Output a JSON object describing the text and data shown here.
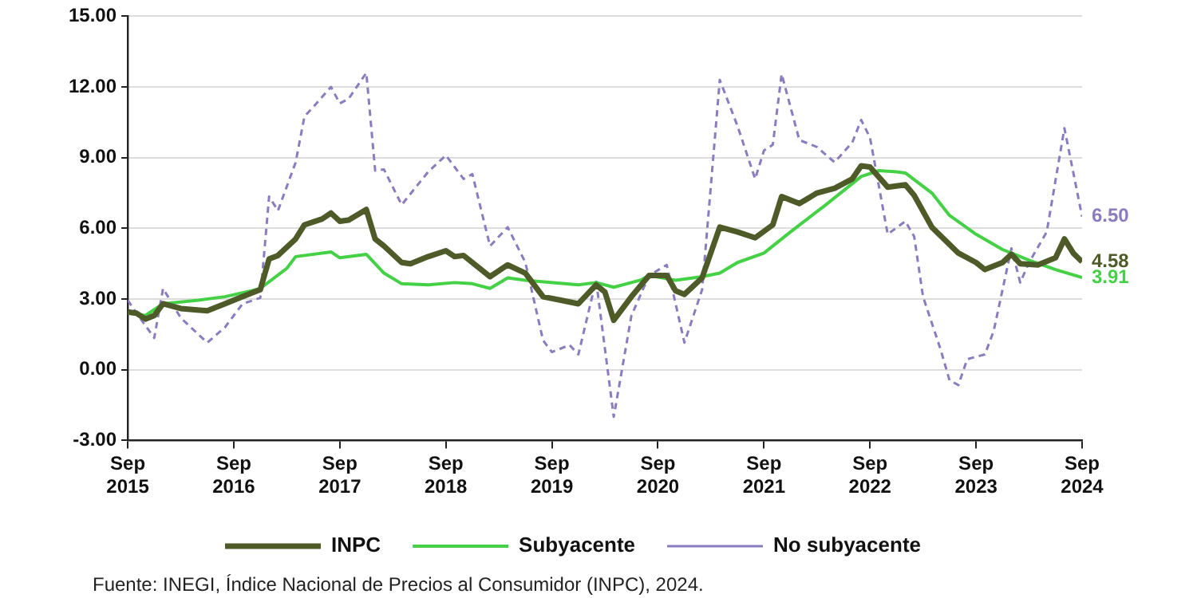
{
  "chart_data": {
    "type": "line",
    "annotations": [
      "Fuente: INEGI, Índice Nacional de Precios al Consumidor (INPC), 2024."
    ],
    "xlim": [
      "2015-09",
      "2024-09"
    ],
    "xticks": [
      {
        "value": "2015-09",
        "label": "Sep 2015"
      },
      {
        "value": "2016-09",
        "label": "Sep 2016"
      },
      {
        "value": "2017-09",
        "label": "Sep 2017"
      },
      {
        "value": "2018-09",
        "label": "Sep 2018"
      },
      {
        "value": "2019-09",
        "label": "Sep 2019"
      },
      {
        "value": "2020-09",
        "label": "Sep 2020"
      },
      {
        "value": "2021-09",
        "label": "Sep 2021"
      },
      {
        "value": "2022-09",
        "label": "Sep 2022"
      },
      {
        "value": "2023-09",
        "label": "Sep 2023"
      },
      {
        "value": "2024-09",
        "label": "Sep 2024"
      }
    ],
    "ylim": [
      -3,
      15
    ],
    "yticks": [
      {
        "value": -3,
        "label": "-3.00"
      },
      {
        "value": 0,
        "label": "0.00"
      },
      {
        "value": 3,
        "label": "3.00"
      },
      {
        "value": 6,
        "label": "6.00"
      },
      {
        "value": 9,
        "label": "9.00"
      },
      {
        "value": 12,
        "label": "12.00"
      },
      {
        "value": 15,
        "label": "15.00"
      }
    ],
    "grid": "y",
    "legend": "bottom",
    "marker": "none",
    "series": [
      {
        "name": "INPC",
        "color": "#4e5b28",
        "line_style": "solid",
        "x": [
          "2015-09",
          "2015-10",
          "2015-11",
          "2015-12",
          "2016-01",
          "2016-03",
          "2016-06",
          "2016-08",
          "2016-10",
          "2016-12",
          "2017-01",
          "2017-02",
          "2017-04",
          "2017-05",
          "2017-07",
          "2017-08",
          "2017-09",
          "2017-10",
          "2017-12",
          "2018-01",
          "2018-02",
          "2018-04",
          "2018-05",
          "2018-07",
          "2018-09",
          "2018-10",
          "2018-11",
          "2018-12",
          "2019-02",
          "2019-04",
          "2019-06",
          "2019-08",
          "2019-10",
          "2019-12",
          "2020-02",
          "2020-03",
          "2020-04",
          "2020-06",
          "2020-08",
          "2020-10",
          "2020-11",
          "2020-12",
          "2021-02",
          "2021-04",
          "2021-06",
          "2021-08",
          "2021-10",
          "2021-11",
          "2022-01",
          "2022-03",
          "2022-05",
          "2022-07",
          "2022-08",
          "2022-09",
          "2022-11",
          "2023-01",
          "2023-02",
          "2023-04",
          "2023-07",
          "2023-09",
          "2023-10",
          "2023-12",
          "2024-01",
          "2024-02",
          "2024-04",
          "2024-06",
          "2024-07",
          "2024-08",
          "2024-09"
        ],
        "values": [
          2.45,
          2.4,
          2.15,
          2.3,
          2.8,
          2.6,
          2.5,
          2.8,
          3.1,
          3.4,
          4.7,
          4.85,
          5.55,
          6.15,
          6.4,
          6.65,
          6.3,
          6.35,
          6.8,
          5.55,
          5.25,
          4.55,
          4.5,
          4.8,
          5.05,
          4.8,
          4.85,
          4.55,
          3.95,
          4.45,
          4.1,
          3.1,
          2.95,
          2.8,
          3.6,
          3.3,
          2.1,
          3.1,
          4.0,
          4.0,
          3.35,
          3.2,
          3.9,
          6.05,
          5.85,
          5.6,
          6.15,
          7.35,
          7.05,
          7.5,
          7.7,
          8.1,
          8.65,
          8.6,
          7.75,
          7.85,
          7.4,
          6.05,
          4.95,
          4.55,
          4.25,
          4.55,
          4.9,
          4.5,
          4.45,
          4.75,
          5.55,
          4.95,
          4.58
        ],
        "value_labels": [
          null,
          null,
          null,
          null,
          null,
          null,
          null,
          null,
          null,
          null,
          null,
          null,
          null,
          null,
          null,
          null,
          null,
          null,
          null,
          null,
          null,
          null,
          null,
          null,
          null,
          null,
          null,
          null,
          null,
          null,
          null,
          null,
          null,
          null,
          null,
          null,
          null,
          null,
          null,
          null,
          null,
          null,
          null,
          null,
          null,
          null,
          null,
          null,
          null,
          null,
          null,
          null,
          null,
          null,
          null,
          null,
          null,
          null,
          null,
          null,
          null,
          null,
          null,
          null,
          null,
          null,
          null,
          null,
          "4.58"
        ]
      },
      {
        "name": "Subyacente",
        "color": "#45d145",
        "line_style": "solid",
        "x": [
          "2015-09",
          "2015-11",
          "2016-01",
          "2016-05",
          "2016-08",
          "2016-11",
          "2016-12",
          "2017-03",
          "2017-04",
          "2017-08",
          "2017-09",
          "2017-12",
          "2018-02",
          "2018-04",
          "2018-07",
          "2018-10",
          "2018-12",
          "2019-02",
          "2019-04",
          "2019-06",
          "2019-12",
          "2020-02",
          "2020-04",
          "2020-07",
          "2020-08",
          "2020-11",
          "2021-02",
          "2021-04",
          "2021-06",
          "2021-09",
          "2021-12",
          "2022-04",
          "2022-06",
          "2022-08",
          "2022-10",
          "2022-12",
          "2023-01",
          "2023-04",
          "2023-06",
          "2023-09",
          "2023-12",
          "2024-03",
          "2024-06",
          "2024-09"
        ],
        "values": [
          2.4,
          2.3,
          2.8,
          2.95,
          3.1,
          3.35,
          3.45,
          4.3,
          4.8,
          5.0,
          4.75,
          4.9,
          4.1,
          3.65,
          3.6,
          3.7,
          3.65,
          3.45,
          3.9,
          3.8,
          3.6,
          3.7,
          3.5,
          3.8,
          4.0,
          3.8,
          3.95,
          4.1,
          4.55,
          4.95,
          5.85,
          7.0,
          7.6,
          8.2,
          8.45,
          8.4,
          8.35,
          7.5,
          6.55,
          5.75,
          5.1,
          4.65,
          4.25,
          3.91
        ],
        "value_labels": [
          null,
          null,
          null,
          null,
          null,
          null,
          null,
          null,
          null,
          null,
          null,
          null,
          null,
          null,
          null,
          null,
          null,
          null,
          null,
          null,
          null,
          null,
          null,
          null,
          null,
          null,
          null,
          null,
          null,
          null,
          null,
          null,
          null,
          null,
          null,
          null,
          null,
          null,
          null,
          null,
          null,
          null,
          null,
          "3.91"
        ]
      },
      {
        "name": "No subyacente",
        "color": "#8a7cbf",
        "line_style": "dashed",
        "x": [
          "2015-09",
          "2015-10",
          "2015-12",
          "2016-01",
          "2016-03",
          "2016-06",
          "2016-08",
          "2016-10",
          "2016-12",
          "2017-01",
          "2017-02",
          "2017-04",
          "2017-05",
          "2017-06",
          "2017-08",
          "2017-09",
          "2017-10",
          "2017-12",
          "2018-01",
          "2018-02",
          "2018-04",
          "2018-07",
          "2018-09",
          "2018-11",
          "2018-12",
          "2019-02",
          "2019-04",
          "2019-06",
          "2019-08",
          "2019-09",
          "2019-11",
          "2019-12",
          "2020-02",
          "2020-04",
          "2020-06",
          "2020-08",
          "2020-10",
          "2020-12",
          "2021-02",
          "2021-04",
          "2021-06",
          "2021-08",
          "2021-09",
          "2021-10",
          "2021-11",
          "2022-01",
          "2022-03",
          "2022-05",
          "2022-07",
          "2022-08",
          "2022-09",
          "2022-11",
          "2023-01",
          "2023-02",
          "2023-03",
          "2023-05",
          "2023-06",
          "2023-07",
          "2023-08",
          "2023-10",
          "2023-11",
          "2024-01",
          "2024-02",
          "2024-03",
          "2024-05",
          "2024-07",
          "2024-09"
        ],
        "values": [
          2.95,
          2.4,
          1.35,
          3.45,
          2.2,
          1.15,
          1.8,
          2.8,
          3.05,
          7.35,
          6.75,
          8.8,
          10.75,
          11.15,
          12.0,
          11.3,
          11.5,
          12.6,
          8.45,
          8.5,
          7.0,
          8.4,
          9.1,
          8.1,
          8.3,
          5.25,
          6.05,
          4.55,
          1.25,
          0.75,
          1.05,
          0.65,
          3.8,
          -2.0,
          2.3,
          4.0,
          4.45,
          1.15,
          3.4,
          12.3,
          10.35,
          8.1,
          9.3,
          9.55,
          12.55,
          9.75,
          9.45,
          8.8,
          9.65,
          10.6,
          9.85,
          5.75,
          6.3,
          5.65,
          3.1,
          0.85,
          -0.45,
          -0.65,
          0.45,
          0.65,
          1.65,
          5.15,
          3.7,
          4.55,
          5.85,
          10.25,
          6.5
        ],
        "value_labels": [
          null,
          null,
          null,
          null,
          null,
          null,
          null,
          null,
          null,
          null,
          null,
          null,
          null,
          null,
          null,
          null,
          null,
          null,
          null,
          null,
          null,
          null,
          null,
          null,
          null,
          null,
          null,
          null,
          null,
          null,
          null,
          null,
          null,
          null,
          null,
          null,
          null,
          null,
          null,
          null,
          null,
          null,
          null,
          null,
          null,
          null,
          null,
          null,
          null,
          null,
          null,
          null,
          null,
          null,
          null,
          null,
          null,
          null,
          null,
          null,
          null,
          null,
          null,
          null,
          null,
          null,
          "6.50"
        ]
      }
    ]
  }
}
